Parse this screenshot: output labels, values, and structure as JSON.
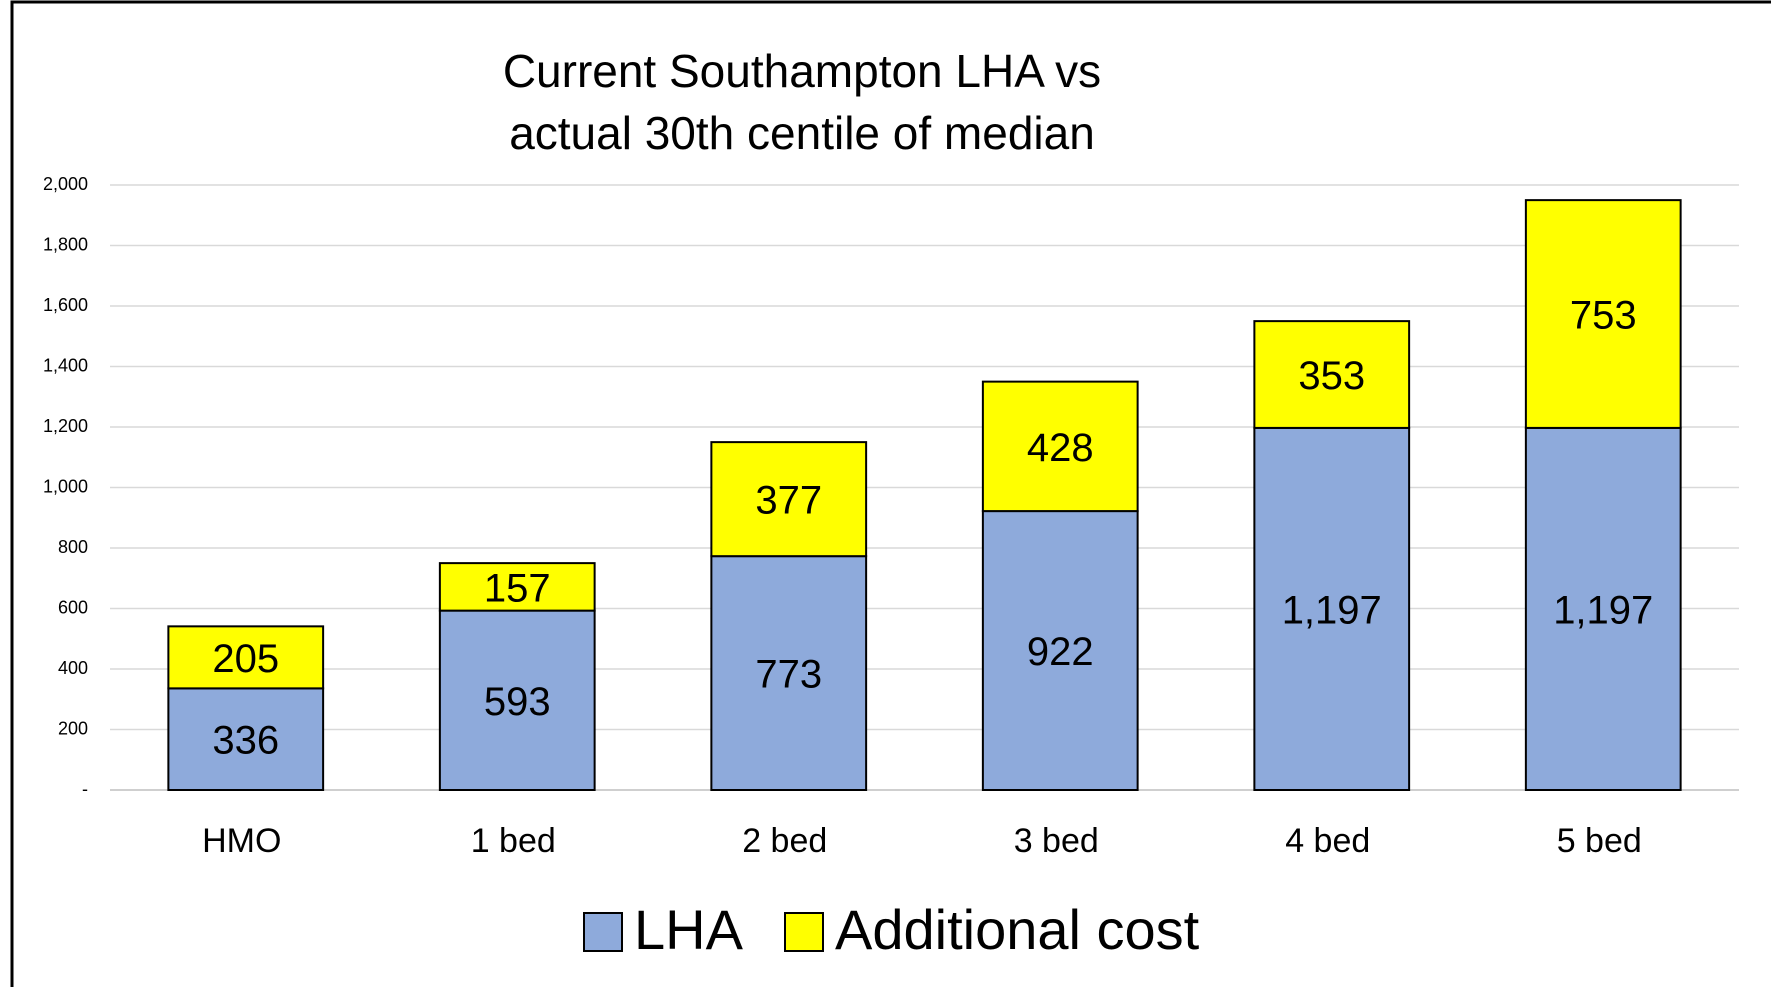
{
  "chart_data": {
    "type": "stacked_bar",
    "title": [
      "Current Southampton LHA vs",
      "actual 30th centile of median"
    ],
    "categories": [
      "HMO",
      "1 bed",
      "2 bed",
      "3 bed",
      "4 bed",
      "5 bed"
    ],
    "series": [
      {
        "name": "LHA",
        "color": "#8eaadb",
        "values": [
          336,
          593,
          773,
          922,
          1197,
          1197
        ],
        "value_labels": [
          "336",
          "593",
          "773",
          "922",
          "1,197",
          "1,197"
        ]
      },
      {
        "name": "Additional cost",
        "color": "#ffff00",
        "values": [
          205,
          157,
          377,
          428,
          353,
          753
        ]
      }
    ],
    "ylim": [
      0,
      2000
    ],
    "yticks": [
      {
        "value": 0,
        "label": "-"
      },
      200,
      400,
      600,
      800,
      {
        "value": 1000,
        "label": "1,000"
      },
      {
        "value": 1200,
        "label": "1,200"
      },
      {
        "value": 1400,
        "label": "1,400"
      },
      {
        "value": 1600,
        "label": "1,600"
      },
      {
        "value": 1800,
        "label": "1,800"
      },
      {
        "value": 2000,
        "label": "2,000"
      }
    ],
    "grid": true,
    "legend": "bottom"
  }
}
